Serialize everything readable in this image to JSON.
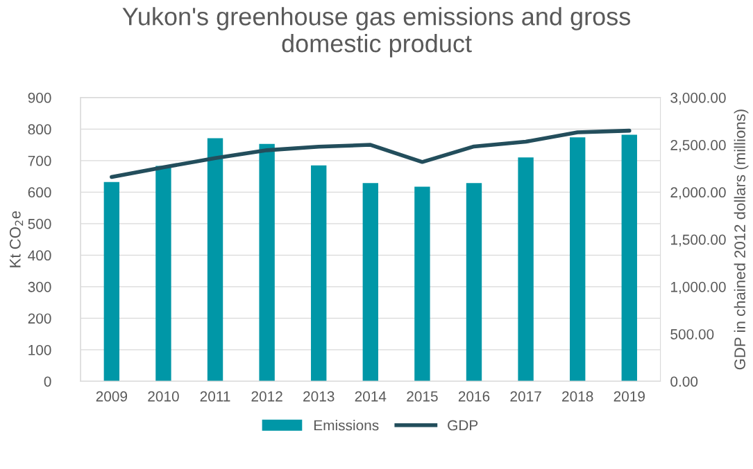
{
  "chart_data": {
    "type": "bar",
    "title": "Yukon's greenhouse gas emissions and gross domestic product",
    "categories": [
      "2009",
      "2010",
      "2011",
      "2012",
      "2013",
      "2014",
      "2015",
      "2016",
      "2017",
      "2018",
      "2019"
    ],
    "series": [
      {
        "name": "Emissions",
        "color": "#0097a7",
        "values": [
          632,
          683,
          771,
          753,
          685,
          629,
          617,
          629,
          710,
          774,
          782
        ]
      },
      {
        "name": "GDP",
        "type": "line",
        "axis": "y2",
        "color": "#234e5c",
        "marker": "none",
        "line_style": "solid",
        "values": [
          2160,
          2262,
          2360,
          2443,
          2481,
          2500,
          2319,
          2483,
          2533,
          2633,
          2650
        ]
      }
    ],
    "ylabel": "Kt CO$_{2}$e",
    "y2label": "GDP in chained 2012 dollars (millions)",
    "ylim": [
      0,
      900
    ],
    "yticks": [
      0,
      100,
      200,
      300,
      400,
      500,
      600,
      700,
      800,
      900
    ],
    "y2lim": [
      0,
      3000
    ],
    "y2ticks": [
      {
        "value": 0,
        "label": "0.00"
      },
      {
        "value": 500,
        "label": "500.00"
      },
      {
        "value": 1000,
        "label": "1,000.00"
      },
      {
        "value": 1500,
        "label": "1,500.00"
      },
      {
        "value": 2000,
        "label": "2,000.00"
      },
      {
        "value": 2500,
        "label": "2,500.00"
      },
      {
        "value": 3000,
        "label": "3,000.00"
      }
    ],
    "grid": "y",
    "legend": "bottom"
  }
}
